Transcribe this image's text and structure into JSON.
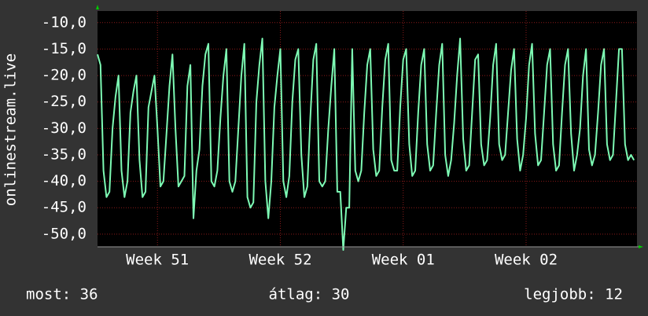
{
  "chart_data": {
    "type": "line",
    "y_label": "onlinestream.live",
    "color": "#7dfab4",
    "grid": true,
    "ylim": [
      -52.4,
      -7.8
    ],
    "yticks": [
      {
        "value": -10,
        "label": "-10,0"
      },
      {
        "value": -15,
        "label": "-15,0"
      },
      {
        "value": -20,
        "label": "-20,0"
      },
      {
        "value": -25,
        "label": "-25,0"
      },
      {
        "value": -30,
        "label": "-30,0"
      },
      {
        "value": -35,
        "label": "-35,0"
      },
      {
        "value": -40,
        "label": "-40,0"
      },
      {
        "value": -45,
        "label": "-45,0"
      },
      {
        "value": -50,
        "label": "-50,0"
      }
    ],
    "xlim": [
      0,
      180
    ],
    "xticks": [
      {
        "value": 20,
        "label": "Week 51"
      },
      {
        "value": 61,
        "label": "Week 52"
      },
      {
        "value": 102,
        "label": "Week 01"
      },
      {
        "value": 143,
        "label": "Week 02"
      }
    ],
    "values": [
      -16,
      -18,
      -38,
      -43,
      -42,
      -30,
      -24,
      -20,
      -38,
      -43,
      -40,
      -27,
      -23,
      -20,
      -36,
      -43,
      -42,
      -26,
      -23,
      -20,
      -30,
      -41,
      -40,
      -31,
      -22,
      -16,
      -30,
      -41,
      -40,
      -39,
      -22,
      -18,
      -47,
      -38,
      -34,
      -22,
      -16,
      -14,
      -40,
      -41,
      -38,
      -28,
      -20,
      -15,
      -40,
      -42,
      -40,
      -30,
      -20,
      -14,
      -43,
      -45,
      -44,
      -25,
      -18,
      -13,
      -40,
      -47,
      -40,
      -26,
      -20,
      -15,
      -40,
      -43,
      -39,
      -25,
      -17,
      -15,
      -35,
      -43,
      -41,
      -28,
      -17,
      -14,
      -40,
      -41,
      -40,
      -30,
      -22,
      -15,
      -42,
      -42,
      -53,
      -45,
      -45,
      -15,
      -38,
      -40,
      -38,
      -27,
      -18,
      -15,
      -34,
      -39,
      -38,
      -26,
      -17,
      -14,
      -36,
      -38,
      -38,
      -26,
      -17,
      -15,
      -33,
      -39,
      -38,
      -27,
      -18,
      -15,
      -33,
      -38,
      -37,
      -27,
      -18,
      -14,
      -35,
      -39,
      -36,
      -29,
      -20,
      -13,
      -32,
      -38,
      -37,
      -27,
      -17,
      -16,
      -33,
      -37,
      -36,
      -28,
      -18,
      -14,
      -33,
      -36,
      -35,
      -27,
      -19,
      -15,
      -32,
      -38,
      -35,
      -28,
      -18,
      -14,
      -31,
      -37,
      -36,
      -27,
      -18,
      -15,
      -33,
      -38,
      -37,
      -27,
      -18,
      -15,
      -31,
      -38,
      -35,
      -30,
      -20,
      -15,
      -34,
      -37,
      -35,
      -27,
      -18,
      -15,
      -33,
      -36,
      -35,
      -25,
      -15,
      -15,
      -33,
      -36,
      -35,
      -36
    ],
    "stats": [
      "most: 36",
      "átlag: 30",
      "legjobb: 12"
    ]
  }
}
